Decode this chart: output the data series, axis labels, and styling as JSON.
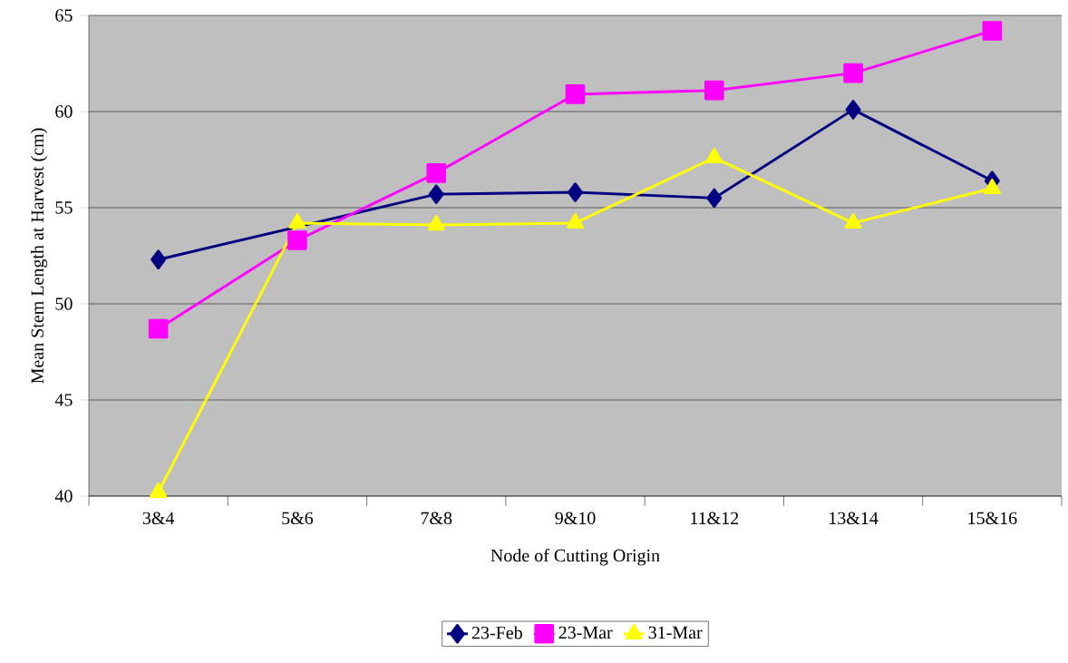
{
  "chart_data": {
    "type": "line",
    "xlabel": "Node of Cutting Origin",
    "ylabel": "Mean Stem Length at Harvest (cm)",
    "categories": [
      "3&4",
      "5&6",
      "7&8",
      "9&10",
      "11&12",
      "13&14",
      "15&16"
    ],
    "series": [
      {
        "name": "23-Feb",
        "color": "#000080",
        "marker": "diamond",
        "values": [
          52.3,
          null,
          55.7,
          55.8,
          55.5,
          60.1,
          56.4
        ]
      },
      {
        "name": "23-Mar",
        "color": "#ff00ff",
        "marker": "square",
        "values": [
          48.7,
          53.3,
          56.8,
          60.9,
          61.1,
          62.0,
          64.2
        ]
      },
      {
        "name": "31-Mar",
        "color": "#ffff00",
        "marker": "triangle",
        "values": [
          40.2,
          54.2,
          54.1,
          54.2,
          57.6,
          54.2,
          56.0
        ]
      }
    ],
    "ylim": [
      40,
      65
    ],
    "yticks": [
      40,
      45,
      50,
      55,
      60,
      65
    ],
    "grid": "y",
    "legend": "bottom",
    "line_style": "solid"
  }
}
